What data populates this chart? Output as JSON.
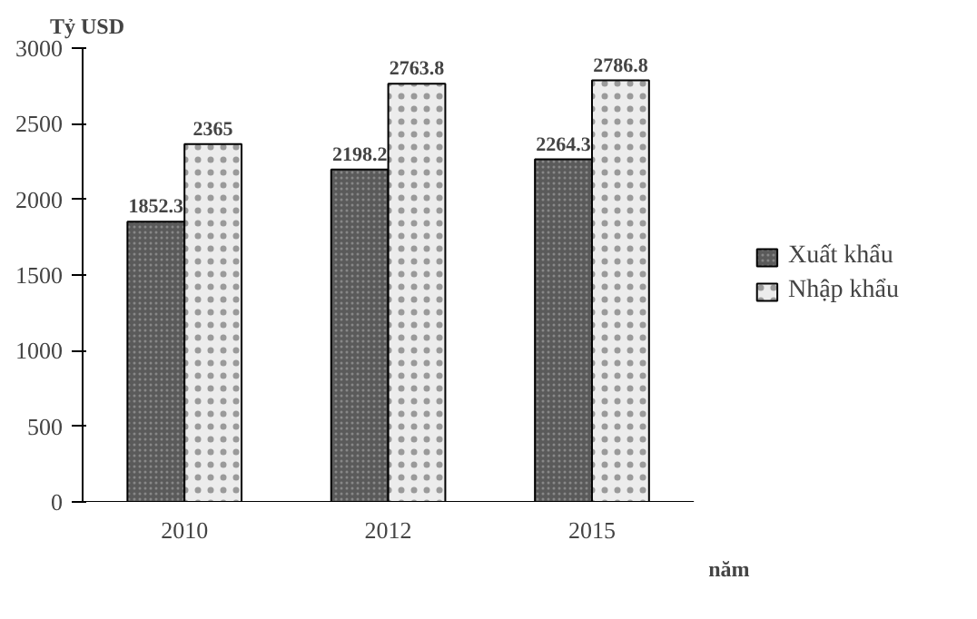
{
  "chart_data": {
    "type": "bar",
    "ylabel": "Tỷ USD",
    "xlabel": "năm",
    "categories": [
      "2010",
      "2012",
      "2015"
    ],
    "series": [
      {
        "name": "Xuất khẩu",
        "color": "#5a5a5a",
        "values": [
          1852.3,
          2198.2,
          2264.3
        ]
      },
      {
        "name": "Nhập khẩu",
        "color": "#ececec",
        "values": [
          2365,
          2763.8,
          2786.8
        ]
      }
    ],
    "ylim": [
      0,
      3000
    ],
    "yticks": [
      0,
      500,
      1000,
      1500,
      2000,
      2500,
      3000
    ],
    "grid": false,
    "legend": "right",
    "data_labels": true
  }
}
